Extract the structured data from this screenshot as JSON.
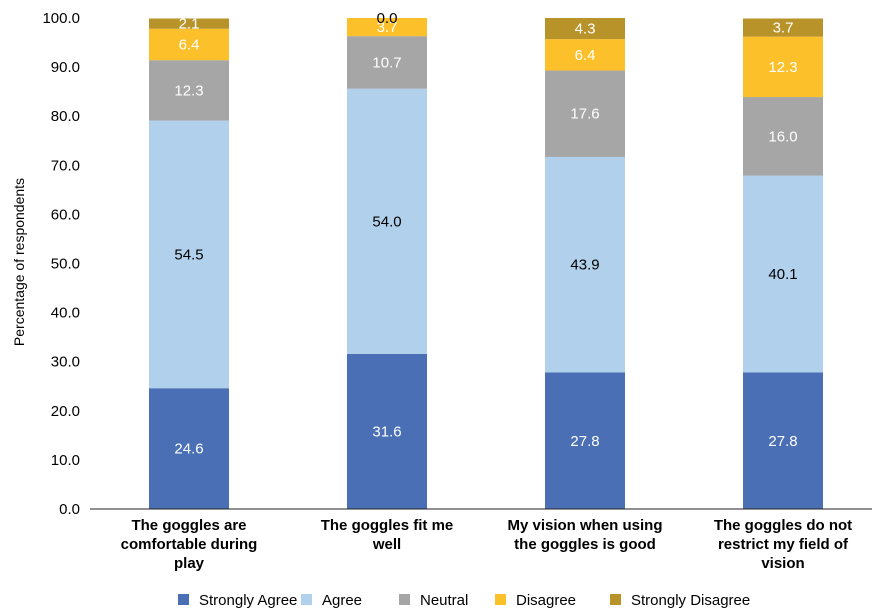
{
  "chart_data": {
    "type": "bar",
    "stacked": true,
    "categories": [
      [
        "The goggles are",
        "comfortable during",
        "play"
      ],
      [
        "The goggles fit me",
        "well"
      ],
      [
        "My vision when using",
        "the goggles is good"
      ],
      [
        "The goggles do not",
        "restrict my field of",
        "vision"
      ]
    ],
    "series": [
      {
        "name": "Strongly Agree",
        "color": "#4a6fb5",
        "label_color": "#ffffff",
        "values": [
          24.6,
          31.6,
          27.8,
          27.8
        ],
        "labels": [
          "24.6",
          "31.6",
          "27.8",
          "27.8"
        ]
      },
      {
        "name": "Agree",
        "color": "#b0d0eb",
        "label_color": "#000000",
        "values": [
          54.5,
          54.0,
          43.9,
          40.1
        ],
        "labels": [
          "54.5",
          "54.0",
          "43.9",
          "40.1"
        ]
      },
      {
        "name": "Neutral",
        "color": "#a6a6a6",
        "label_color": "#ffffff",
        "values": [
          12.3,
          10.7,
          17.6,
          16.0
        ],
        "labels": [
          "12.3",
          "10.7",
          "17.6",
          "16.0"
        ]
      },
      {
        "name": "Disagree",
        "color": "#fcc02b",
        "label_color": "#ffffff",
        "values": [
          6.4,
          3.7,
          6.4,
          12.3
        ],
        "labels": [
          "6.4",
          "3.7",
          "6.4",
          "12.3"
        ]
      },
      {
        "name": "Strongly Disagree",
        "color": "#b8932a",
        "label_color": "#ffffff",
        "values": [
          2.1,
          0.0,
          4.3,
          3.7
        ],
        "labels": [
          "2.1",
          "0.0",
          "4.3",
          "3.7"
        ]
      }
    ],
    "ylabel": "Percentage of respondents",
    "ylim": [
      0,
      100
    ],
    "yticks": [
      "0.0",
      "10.0",
      "20.0",
      "30.0",
      "40.0",
      "50.0",
      "60.0",
      "70.0",
      "80.0",
      "90.0",
      "100.0"
    ],
    "grid": false,
    "legend_position": "bottom"
  }
}
